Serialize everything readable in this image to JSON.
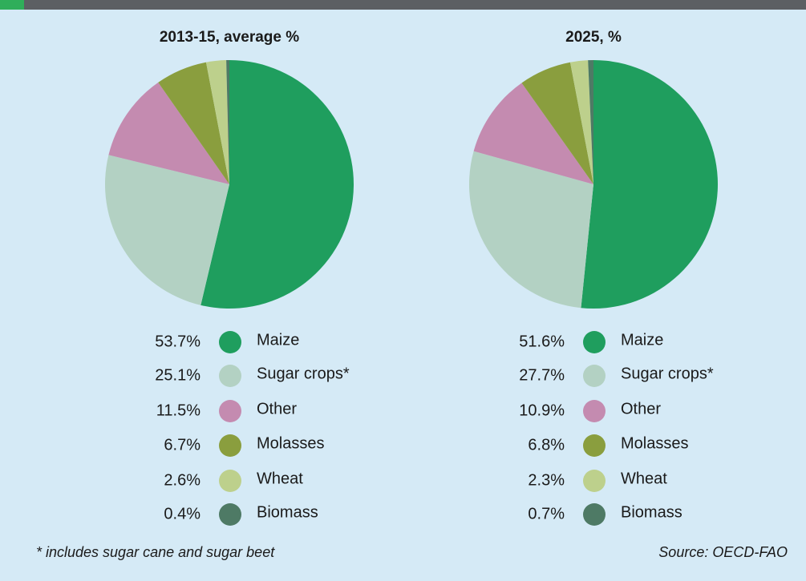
{
  "chart_data": [
    {
      "type": "pie",
      "title": "2013-15, average %",
      "categories": [
        "Maize",
        "Sugar crops*",
        "Other",
        "Molasses",
        "Wheat",
        "Biomass"
      ],
      "values": [
        53.7,
        25.1,
        11.5,
        6.7,
        2.6,
        0.4
      ],
      "value_labels": [
        "53.7%",
        "25.1%",
        "11.5%",
        "6.7%",
        "2.6%",
        "0.4%"
      ],
      "colors": [
        "#1f9e5e",
        "#b3d1c3",
        "#c48bb0",
        "#8a9e3e",
        "#bdd08c",
        "#4e7a65"
      ]
    },
    {
      "type": "pie",
      "title": "2025, %",
      "categories": [
        "Maize",
        "Sugar crops*",
        "Other",
        "Molasses",
        "Wheat",
        "Biomass"
      ],
      "values": [
        51.6,
        27.7,
        10.9,
        6.8,
        2.3,
        0.7
      ],
      "value_labels": [
        "51.6%",
        "27.7%",
        "10.9%",
        "6.8%",
        "2.3%",
        "0.7%"
      ],
      "colors": [
        "#1f9e5e",
        "#b3d1c3",
        "#c48bb0",
        "#8a9e3e",
        "#bdd08c",
        "#4e7a65"
      ]
    }
  ],
  "footnote": "* includes sugar cane and sugar beet",
  "source": "Source: OECD-FAO"
}
